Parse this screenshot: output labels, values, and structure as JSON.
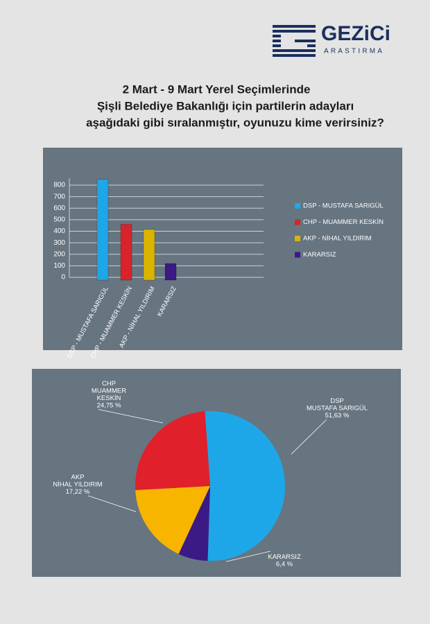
{
  "logo": {
    "name": "GEZiCi",
    "subtitle": "ARASTIRMA"
  },
  "title": [
    "2 Mart - 9 Mart Yerel Seçimlerinde",
    "Şişli Belediye Bakanlığı için partilerin adayları",
    "aşağıdaki gibi sıralanmıştır, oyunuzu kime verirsiniz?"
  ],
  "chart_data": [
    {
      "type": "bar",
      "categories": [
        "DSP - MUSTAFA SARIGÜL",
        "CHP - MUAMMER KESKİN",
        "AKP - NİHAL YILDIRIM",
        "KARARSIZ"
      ],
      "values": [
        850,
        460,
        415,
        120
      ],
      "colors": [
        "#1ea7e8",
        "#d9232a",
        "#d8b400",
        "#3c1a86"
      ],
      "ylim": [
        0,
        860
      ],
      "yticks": [
        0,
        100,
        200,
        300,
        400,
        500,
        600,
        700,
        800
      ],
      "grid": true,
      "legend": "right"
    },
    {
      "type": "pie",
      "categories": [
        [
          "DSP",
          "MUSTAFA SARIGÜL"
        ],
        [
          "KARARSIZ"
        ],
        [
          "AKP",
          "NİHAL YILDIRIM"
        ],
        [
          "CHP",
          "MUAMMER",
          "KESKİN"
        ]
      ],
      "values": [
        51.63,
        6.4,
        17.22,
        24.75
      ],
      "value_labels": [
        "51,63 %",
        "6,4 %",
        "17,22 %",
        "24,75 %"
      ],
      "colors": [
        "#1ea7e8",
        "#3c1a86",
        "#f7b500",
        "#e0202a"
      ]
    }
  ]
}
